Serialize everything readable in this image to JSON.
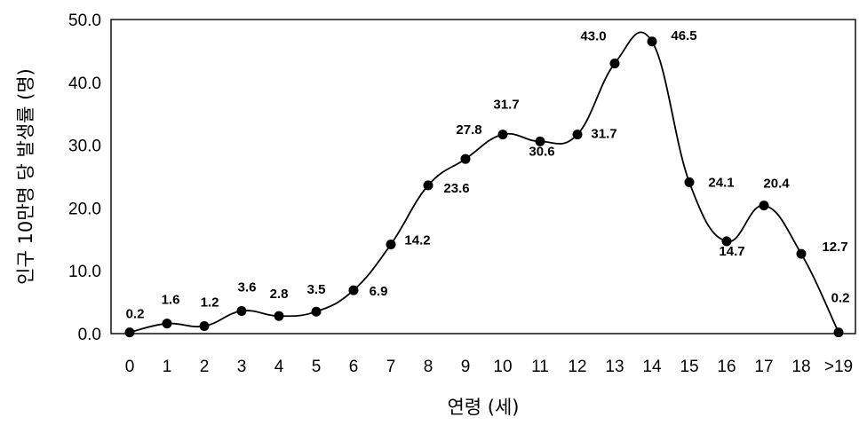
{
  "chart_data": {
    "type": "line",
    "xlabel": "연령 (세)",
    "ylabel": "인구 10만명 당 발생률 (명)",
    "categories": [
      "0",
      "1",
      "2",
      "3",
      "4",
      "5",
      "6",
      "7",
      "8",
      "9",
      "10",
      "11",
      "12",
      "13",
      "14",
      "15",
      "16",
      "17",
      "18",
      ">19"
    ],
    "series": [
      {
        "values": [
          0.2,
          1.6,
          1.2,
          3.6,
          2.8,
          3.5,
          6.9,
          14.2,
          23.6,
          27.8,
          31.7,
          30.6,
          31.7,
          43.0,
          46.5,
          24.1,
          14.7,
          20.4,
          12.7,
          0.2
        ],
        "data_labels": [
          "0.2",
          "1.6",
          "1.2",
          "3.6",
          "2.8",
          "3.5",
          "6.9",
          "14.2",
          "23.6",
          "27.8",
          "31.7",
          "30.6",
          "31.7",
          "43.0",
          "46.5",
          "24.1",
          "14.7",
          "20.4",
          "12.7",
          "0.2"
        ]
      }
    ],
    "y_ticks": [
      "0.0",
      "10.0",
      "20.0",
      "30.0",
      "40.0",
      "50.0"
    ],
    "ylim": [
      0,
      50
    ],
    "grid": false,
    "legend": "none",
    "smooth": true,
    "colors": {
      "line": "#000000",
      "marker": "#000000",
      "frame": "#000000"
    }
  }
}
